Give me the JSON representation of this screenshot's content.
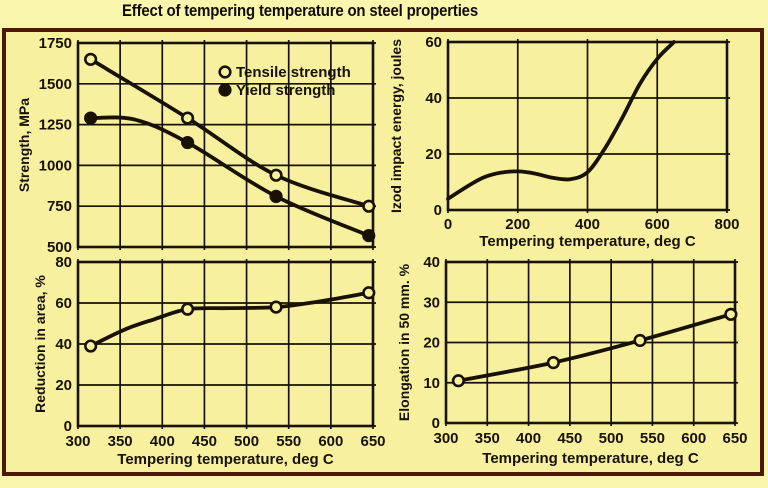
{
  "title": "Effect of tempering temperature on steel properties",
  "colors": {
    "page_bg": "#FBF6AE",
    "panel_bg": "#F7F19F",
    "border": "#4D1808",
    "ink": "#191103",
    "title_text": "#120B02"
  },
  "chart_data": [
    {
      "id": "strength",
      "type": "line",
      "title": "",
      "xlabel": "",
      "ylabel": "Strength, MPa",
      "xlim": [
        300,
        650
      ],
      "ylim": [
        500,
        1750
      ],
      "xticks": [
        300,
        350,
        400,
        450,
        500,
        550,
        600,
        650
      ],
      "yticks": [
        500,
        750,
        1000,
        1250,
        1500,
        1750
      ],
      "grid": true,
      "legend": [
        "Tensile strength",
        "Yield strength"
      ],
      "legend_position": "upper-right-inside",
      "series": [
        {
          "name": "Tensile strength",
          "marker": "open-circle",
          "points": [
            [
              315,
              1650
            ],
            [
              430,
              1290
            ],
            [
              535,
              940
            ],
            [
              645,
              750
            ]
          ]
        },
        {
          "name": "Yield strength",
          "marker": "filled-circle",
          "points": [
            [
              315,
              1290
            ],
            [
              430,
              1140
            ],
            [
              535,
              810
            ],
            [
              645,
              570
            ]
          ],
          "curve": [
            [
              315,
              1290
            ],
            [
              368,
              1280
            ],
            [
              430,
              1140
            ],
            [
              535,
              810
            ],
            [
              645,
              570
            ]
          ]
        }
      ]
    },
    {
      "id": "izod",
      "type": "line",
      "title": "",
      "xlabel": "Tempering temperature, deg C",
      "ylabel": "Izod impact energy, joules",
      "xlim": [
        0,
        800
      ],
      "ylim": [
        0,
        60
      ],
      "xticks": [
        0,
        200,
        400,
        600,
        800
      ],
      "yticks": [
        0,
        20,
        40,
        60
      ],
      "grid": true,
      "series": [
        {
          "name": "Izod impact energy",
          "marker": "none",
          "points": [],
          "curve": [
            [
              0,
              4
            ],
            [
              50,
              8
            ],
            [
              100,
              11.5
            ],
            [
              150,
              13.3
            ],
            [
              200,
              13.8
            ],
            [
              250,
              13
            ],
            [
              300,
              11.5
            ],
            [
              350,
              11
            ],
            [
              400,
              13.5
            ],
            [
              450,
              22
            ],
            [
              500,
              33
            ],
            [
              550,
              45
            ],
            [
              600,
              54
            ],
            [
              648,
              60
            ]
          ]
        }
      ]
    },
    {
      "id": "reduction",
      "type": "line",
      "title": "",
      "xlabel": "Tempering temperature, deg C",
      "ylabel": "Reduction in area, %",
      "xlim": [
        300,
        650
      ],
      "ylim": [
        0,
        80
      ],
      "xticks": [
        300,
        350,
        400,
        450,
        500,
        550,
        600,
        650
      ],
      "yticks": [
        0,
        20,
        40,
        60,
        80
      ],
      "grid": true,
      "series": [
        {
          "name": "Reduction in area",
          "marker": "open-circle",
          "points": [
            [
              315,
              39
            ],
            [
              430,
              57
            ],
            [
              535,
              58
            ],
            [
              645,
              65
            ]
          ],
          "curve": [
            [
              315,
              39
            ],
            [
              355,
              47
            ],
            [
              390,
              52
            ],
            [
              430,
              57
            ],
            [
              480,
              57.5
            ],
            [
              535,
              58
            ],
            [
              590,
              61
            ],
            [
              645,
              65
            ]
          ]
        }
      ]
    },
    {
      "id": "elongation",
      "type": "line",
      "title": "",
      "xlabel": "Tempering temperature, deg C",
      "ylabel": "Elongation in 50 mm. %",
      "xlim": [
        300,
        650
      ],
      "ylim": [
        0,
        40
      ],
      "xticks": [
        300,
        350,
        400,
        450,
        500,
        550,
        600,
        650
      ],
      "yticks": [
        0,
        10,
        20,
        30,
        40
      ],
      "grid": true,
      "series": [
        {
          "name": "Elongation",
          "marker": "open-circle",
          "points": [
            [
              315,
              10.5
            ],
            [
              430,
              15
            ],
            [
              535,
              20.5
            ],
            [
              645,
              27
            ]
          ]
        }
      ]
    }
  ]
}
